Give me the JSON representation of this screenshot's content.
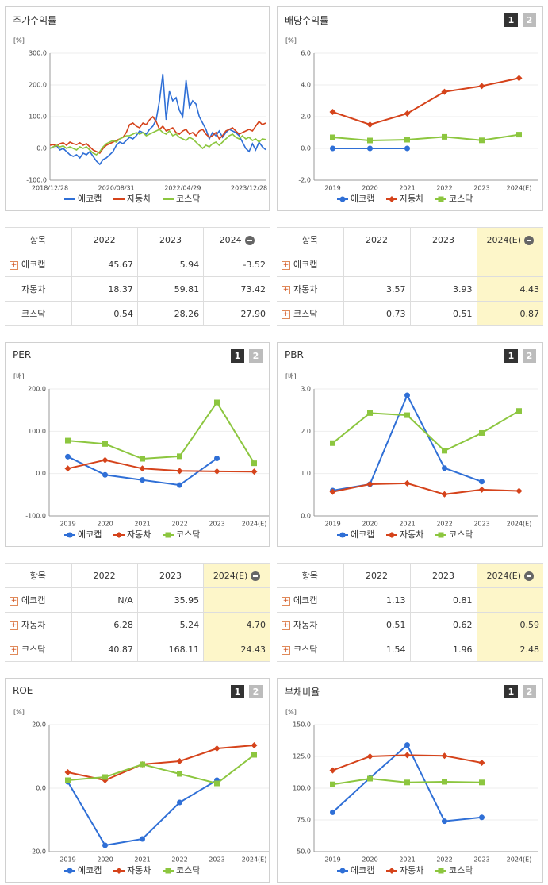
{
  "chart_data": [
    {
      "type": "line",
      "title": "주가수익률",
      "unit": "[%]",
      "categories": [
        "2018/12/28",
        null,
        null,
        null,
        null,
        null,
        null,
        null,
        null,
        null,
        null,
        null,
        null,
        null,
        null,
        null,
        null,
        null,
        null,
        null,
        "2020/08/31",
        null,
        null,
        null,
        null,
        null,
        null,
        null,
        null,
        null,
        null,
        null,
        null,
        null,
        null,
        null,
        null,
        null,
        null,
        null,
        "2022/04/29",
        null,
        null,
        null,
        null,
        null,
        null,
        null,
        null,
        null,
        null,
        null,
        null,
        null,
        null,
        null,
        null,
        null,
        null,
        null,
        "2023/12/28",
        null,
        null,
        null,
        null,
        null
      ],
      "ylim": [
        -100,
        300
      ],
      "yticks": [
        {
          "value": -100,
          "label": "-100.0"
        },
        {
          "value": 0,
          "label": "0.0"
        },
        {
          "value": 100,
          "label": "100.0"
        },
        {
          "value": 200,
          "label": "200.0"
        },
        {
          "value": 300,
          "label": "300.0"
        }
      ],
      "grid": true,
      "series": [
        {
          "name": "에코캡",
          "color": "#2f6fd6",
          "values": [
            0,
            5,
            8,
            -5,
            0,
            -10,
            -20,
            -25,
            -20,
            -30,
            -15,
            -20,
            -10,
            -25,
            -40,
            -50,
            -35,
            -30,
            -20,
            -10,
            10,
            20,
            15,
            25,
            35,
            30,
            40,
            55,
            50,
            45,
            60,
            70,
            90,
            150,
            235,
            90,
            180,
            150,
            160,
            120,
            100,
            215,
            130,
            150,
            140,
            100,
            80,
            60,
            30,
            50,
            40,
            55,
            35,
            50,
            60,
            55,
            50,
            40,
            20,
            0,
            -10,
            15,
            -5,
            20,
            5,
            -4
          ]
        },
        {
          "name": "자동차",
          "color": "#d5431b",
          "values": [
            10,
            12,
            8,
            15,
            18,
            10,
            20,
            15,
            12,
            18,
            10,
            15,
            5,
            -5,
            -10,
            -15,
            0,
            10,
            15,
            20,
            25,
            30,
            35,
            50,
            75,
            80,
            70,
            65,
            80,
            75,
            90,
            100,
            85,
            60,
            70,
            55,
            60,
            65,
            50,
            45,
            55,
            60,
            45,
            50,
            40,
            55,
            60,
            45,
            35,
            40,
            50,
            30,
            40,
            55,
            60,
            65,
            55,
            45,
            50,
            55,
            60,
            55,
            70,
            85,
            75,
            80
          ]
        },
        {
          "name": "코스닥",
          "color": "#8cc63f",
          "values": [
            0,
            5,
            10,
            5,
            8,
            0,
            5,
            0,
            -5,
            5,
            0,
            5,
            -5,
            -15,
            -20,
            -10,
            5,
            15,
            20,
            25,
            20,
            30,
            35,
            40,
            40,
            45,
            50,
            45,
            50,
            40,
            45,
            50,
            55,
            60,
            50,
            45,
            55,
            40,
            45,
            35,
            30,
            25,
            35,
            30,
            20,
            10,
            0,
            10,
            5,
            15,
            20,
            10,
            20,
            30,
            40,
            45,
            35,
            30,
            40,
            30,
            35,
            25,
            30,
            20,
            30,
            28
          ]
        }
      ]
    },
    {
      "type": "line",
      "title": "배당수익률",
      "unit": "[%]",
      "pages": [
        "1",
        "2"
      ],
      "categories": [
        "2019",
        "2020",
        "2021",
        "2022",
        "2023",
        "2024(E)"
      ],
      "ylim": [
        -2,
        6
      ],
      "yticks": [
        {
          "value": -2,
          "label": "-2.0"
        },
        {
          "value": 0,
          "label": "0.0"
        },
        {
          "value": 2,
          "label": "2.0"
        },
        {
          "value": 4,
          "label": "4.0"
        },
        {
          "value": 6,
          "label": "6.0"
        }
      ],
      "grid": true,
      "series": [
        {
          "name": "에코캡",
          "color": "#2f6fd6",
          "marker": "circle",
          "values": [
            0,
            0,
            0,
            null,
            null,
            null
          ]
        },
        {
          "name": "자동차",
          "color": "#d5431b",
          "marker": "diamond",
          "values": [
            2.3,
            1.5,
            2.2,
            3.57,
            3.93,
            4.43
          ]
        },
        {
          "name": "코스닥",
          "color": "#8cc63f",
          "marker": "square",
          "values": [
            0.7,
            0.5,
            0.55,
            0.73,
            0.51,
            0.87
          ]
        }
      ]
    },
    {
      "type": "line",
      "title": "PER",
      "unit": "[배]",
      "pages": [
        "1",
        "2"
      ],
      "categories": [
        "2019",
        "2020",
        "2021",
        "2022",
        "2023",
        "2024(E)"
      ],
      "ylim": [
        -100,
        200
      ],
      "yticks": [
        {
          "value": -100,
          "label": "-100.0"
        },
        {
          "value": 0,
          "label": "0.0"
        },
        {
          "value": 100,
          "label": "100.0"
        },
        {
          "value": 200,
          "label": "200.0"
        }
      ],
      "grid": true,
      "series": [
        {
          "name": "에코캡",
          "color": "#2f6fd6",
          "marker": "circle",
          "values": [
            40,
            -3,
            -15,
            -27,
            35.95,
            null
          ]
        },
        {
          "name": "자동차",
          "color": "#d5431b",
          "marker": "diamond",
          "values": [
            12,
            32,
            12,
            6.28,
            5.24,
            4.7
          ]
        },
        {
          "name": "코스닥",
          "color": "#8cc63f",
          "marker": "square",
          "values": [
            78,
            70,
            35,
            40.87,
            168.11,
            24.43
          ]
        }
      ]
    },
    {
      "type": "line",
      "title": "PBR",
      "unit": "[배]",
      "pages": [
        "1",
        "2"
      ],
      "categories": [
        "2019",
        "2020",
        "2021",
        "2022",
        "2023",
        "2024(E)"
      ],
      "ylim": [
        0,
        3
      ],
      "yticks": [
        {
          "value": 0,
          "label": "0.0"
        },
        {
          "value": 1,
          "label": "1.0"
        },
        {
          "value": 2,
          "label": "2.0"
        },
        {
          "value": 3,
          "label": "3.0"
        }
      ],
      "grid": true,
      "series": [
        {
          "name": "에코캡",
          "color": "#2f6fd6",
          "marker": "circle",
          "values": [
            0.6,
            0.75,
            2.85,
            1.13,
            0.81,
            null
          ]
        },
        {
          "name": "자동차",
          "color": "#d5431b",
          "marker": "diamond",
          "values": [
            0.57,
            0.75,
            0.77,
            0.51,
            0.62,
            0.59
          ]
        },
        {
          "name": "코스닥",
          "color": "#8cc63f",
          "marker": "square",
          "values": [
            1.72,
            2.43,
            2.38,
            1.54,
            1.96,
            2.48
          ]
        }
      ]
    },
    {
      "type": "line",
      "title": "ROE",
      "unit": "[%]",
      "pages": [
        "1",
        "2"
      ],
      "categories": [
        "2019",
        "2020",
        "2021",
        "2022",
        "2023",
        "2024(E)"
      ],
      "ylim": [
        -20,
        20
      ],
      "yticks": [
        {
          "value": -20,
          "label": "-20.0"
        },
        {
          "value": 0,
          "label": "0.0"
        },
        {
          "value": 20,
          "label": "20.0"
        }
      ],
      "grid": true,
      "series": [
        {
          "name": "에코캡",
          "color": "#2f6fd6",
          "marker": "circle",
          "values": [
            2,
            -18,
            -16,
            -4.5,
            2.5,
            null
          ]
        },
        {
          "name": "자동차",
          "color": "#d5431b",
          "marker": "diamond",
          "values": [
            5,
            2.5,
            7.5,
            8.5,
            12.5,
            13.5
          ]
        },
        {
          "name": "코스닥",
          "color": "#8cc63f",
          "marker": "square",
          "values": [
            2.5,
            3.5,
            7.5,
            4.5,
            1.5,
            10.5
          ]
        }
      ]
    },
    {
      "type": "line",
      "title": "부채비율",
      "unit": "[%]",
      "pages": [
        "1",
        "2"
      ],
      "categories": [
        "2019",
        "2020",
        "2021",
        "2022",
        "2023",
        "2024(E)"
      ],
      "ylim": [
        50,
        150
      ],
      "yticks": [
        {
          "value": 50,
          "label": "50.0"
        },
        {
          "value": 75,
          "label": "75.0"
        },
        {
          "value": 100,
          "label": "100.0"
        },
        {
          "value": 125,
          "label": "125.0"
        },
        {
          "value": 150,
          "label": "150.0"
        }
      ],
      "grid": true,
      "series": [
        {
          "name": "에코캡",
          "color": "#2f6fd6",
          "marker": "circle",
          "values": [
            81,
            108,
            134,
            74,
            77,
            null
          ]
        },
        {
          "name": "자동차",
          "color": "#d5431b",
          "marker": "diamond",
          "values": [
            114,
            125,
            126,
            125.5,
            120,
            null
          ]
        },
        {
          "name": "코스닥",
          "color": "#8cc63f",
          "marker": "square",
          "values": [
            103,
            107.5,
            104.5,
            105,
            104.5,
            null
          ]
        }
      ]
    }
  ],
  "tables": [
    {
      "header": [
        "항목",
        "2022",
        "2023",
        "2024"
      ],
      "highlight_last": false,
      "rows": [
        {
          "name": "에코캡",
          "expandable": true,
          "cells": [
            "45.67",
            "5.94",
            "-3.52"
          ]
        },
        {
          "name": "자동차",
          "expandable": false,
          "cells": [
            "18.37",
            "59.81",
            "73.42"
          ]
        },
        {
          "name": "코스닥",
          "expandable": false,
          "cells": [
            "0.54",
            "28.26",
            "27.90"
          ]
        }
      ]
    },
    {
      "header": [
        "항목",
        "2022",
        "2023",
        "2024(E)"
      ],
      "highlight_last": true,
      "rows": [
        {
          "name": "에코캡",
          "expandable": true,
          "cells": [
            null,
            null,
            null
          ]
        },
        {
          "name": "자동차",
          "expandable": true,
          "cells": [
            "3.57",
            "3.93",
            "4.43"
          ]
        },
        {
          "name": "코스닥",
          "expandable": true,
          "cells": [
            "0.73",
            "0.51",
            "0.87"
          ]
        }
      ]
    },
    {
      "header": [
        "항목",
        "2022",
        "2023",
        "2024(E)"
      ],
      "highlight_last": true,
      "rows": [
        {
          "name": "에코캡",
          "expandable": true,
          "cells": [
            "N/A",
            "35.95",
            null
          ]
        },
        {
          "name": "자동차",
          "expandable": true,
          "cells": [
            "6.28",
            "5.24",
            "4.70"
          ]
        },
        {
          "name": "코스닥",
          "expandable": true,
          "cells": [
            "40.87",
            "168.11",
            "24.43"
          ]
        }
      ]
    },
    {
      "header": [
        "항목",
        "2022",
        "2023",
        "2024(E)"
      ],
      "highlight_last": true,
      "rows": [
        {
          "name": "에코캡",
          "expandable": true,
          "cells": [
            "1.13",
            "0.81",
            null
          ]
        },
        {
          "name": "자동차",
          "expandable": true,
          "cells": [
            "0.51",
            "0.62",
            "0.59"
          ]
        },
        {
          "name": "코스닥",
          "expandable": true,
          "cells": [
            "1.54",
            "1.96",
            "2.48"
          ]
        }
      ]
    }
  ]
}
